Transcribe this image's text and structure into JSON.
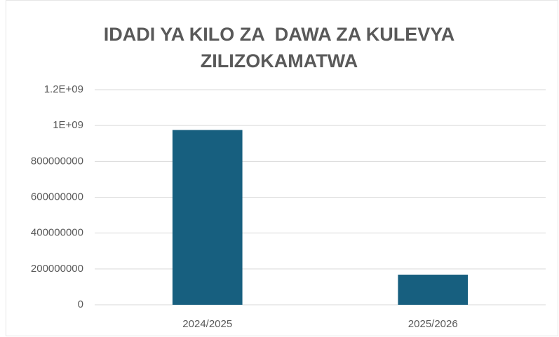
{
  "chart_data": {
    "type": "bar",
    "title": "IDADI YA KILO ZA  DAWA ZA KULEVYA ZILIZOKAMATWA",
    "categories": [
      "2024/2025",
      "2025/2026"
    ],
    "values": [
      975000000,
      168000000
    ],
    "color": "#175f7f",
    "ylim": [
      0,
      1200000000
    ],
    "yticks": [
      0,
      200000000,
      400000000,
      600000000,
      800000000,
      {
        "value": 1000000000,
        "label": "1E+09"
      },
      {
        "value": 1200000000,
        "label": "1.2E+09"
      }
    ],
    "grid": true
  }
}
